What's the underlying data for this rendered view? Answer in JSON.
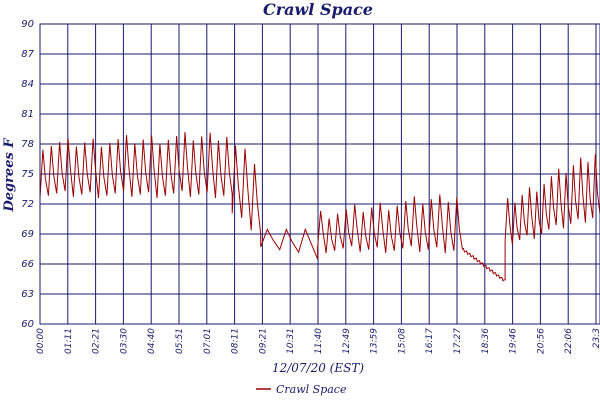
{
  "chart_data": {
    "type": "line",
    "title": "Crawl Space",
    "xlabel": "12/07/20 (EST)",
    "ylabel": "Degrees F",
    "ylim": [
      60,
      90
    ],
    "yticks": [
      "60",
      "63",
      "66",
      "69",
      "72",
      "75",
      "78",
      "81",
      "84",
      "87",
      "90"
    ],
    "xticks": [
      "00:00",
      "01:11",
      "02:21",
      "03:30",
      "04:40",
      "05:51",
      "07:01",
      "08:11",
      "09:21",
      "10:31",
      "11:40",
      "12:49",
      "13:59",
      "15:08",
      "16:17",
      "17:27",
      "18:36",
      "19:46",
      "20:56",
      "22:06",
      "23:3"
    ],
    "x_units": "hours",
    "x_range": [
      0,
      23.6
    ],
    "grid": true,
    "legend_position": "bottom-center",
    "series": [
      {
        "name": "Crawl Space",
        "color": "#9b0000",
        "segments": [
          {
            "x_start": 0.0,
            "x_end": 8.1,
            "low_start": 73,
            "high_start": 78,
            "low_end": 73,
            "high_end": 79,
            "period": 0.36
          },
          {
            "x_start": 8.1,
            "x_end": 9.3,
            "low_start": 71,
            "high_start": 78,
            "low_end": 69,
            "high_end": 76,
            "period": 0.36
          },
          {
            "x_start": 9.3,
            "x_end": 11.7,
            "low_start": 68,
            "high_start": 70,
            "low_end": 66.5,
            "high_end": 69,
            "period": 0.8
          },
          {
            "x_start": 11.7,
            "x_end": 17.8,
            "low_start": 67.5,
            "high_start": 71,
            "low_end": 67.5,
            "high_end": 73,
            "period": 0.36
          },
          {
            "x_start": 17.8,
            "x_end": 19.6,
            "low_start": 67.5,
            "high_start": 67.5,
            "low_end": 64.3,
            "high_end": 64.3,
            "period": 0
          },
          {
            "x_start": 19.6,
            "x_end": 23.6,
            "low_start": 68,
            "high_start": 72,
            "low_end": 71,
            "high_end": 77.5,
            "period": 0.3
          }
        ]
      }
    ]
  }
}
